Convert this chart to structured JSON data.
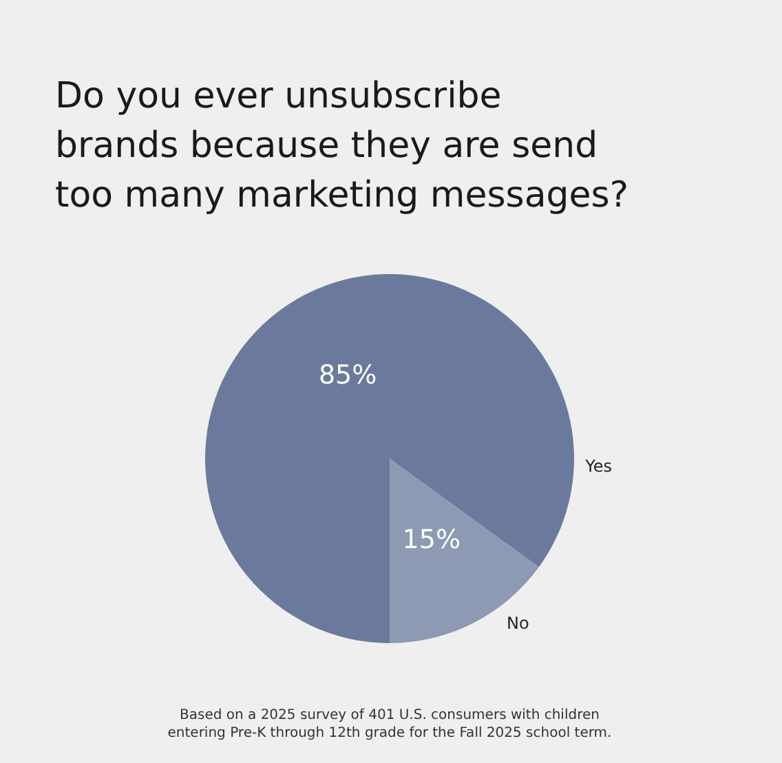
{
  "chart_data": {
    "type": "pie",
    "title": "Do you ever unsubscribe brands because they are send too many marketing messages?",
    "categories": [
      "Yes",
      "No"
    ],
    "values": [
      85,
      15
    ],
    "value_labels": [
      "85%",
      "15%"
    ],
    "colors": [
      "#6b7a9c",
      "#8e99b4"
    ],
    "annotations": [
      "Based on a 2025 survey of 401 U.S. consumers with children entering Pre-K through 12th grade for the Fall 2025 school term."
    ]
  }
}
